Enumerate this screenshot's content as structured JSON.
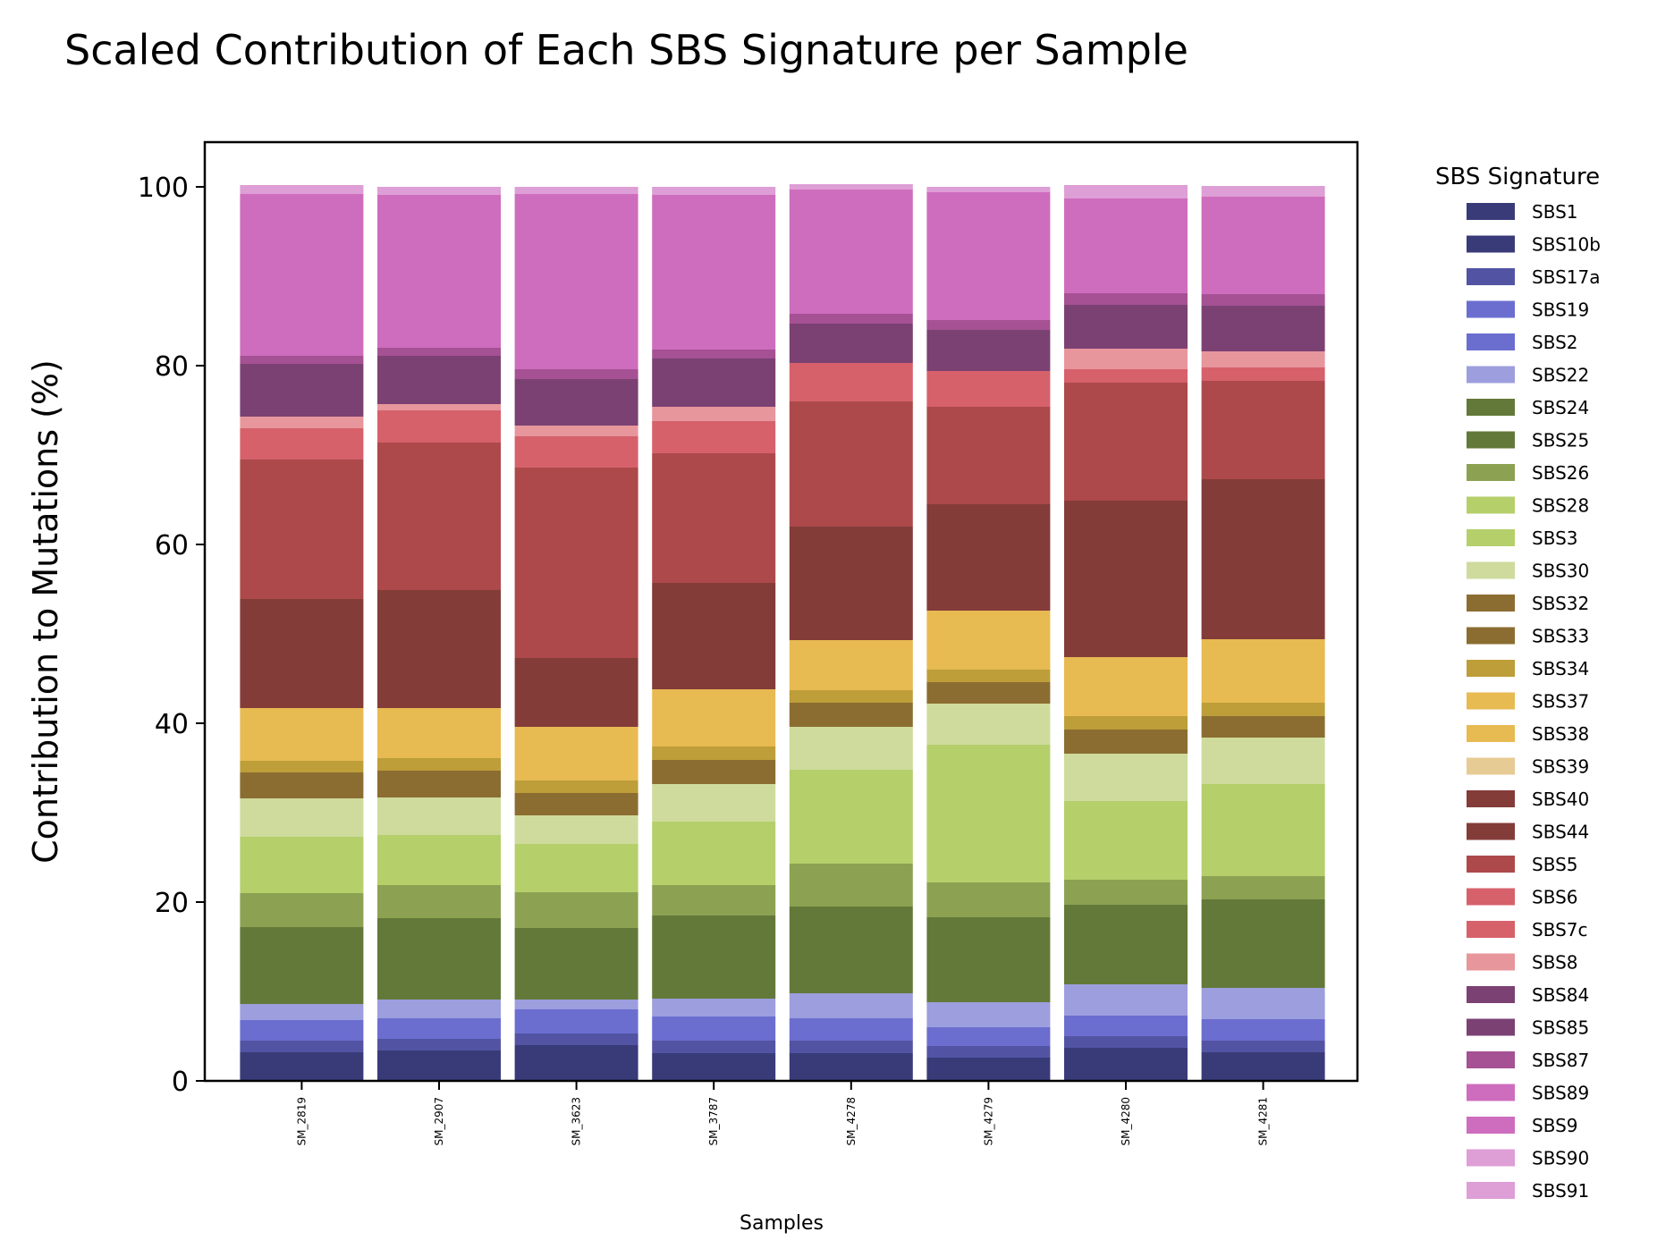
{
  "chart_data": {
    "type": "bar",
    "stacked": true,
    "title": "Scaled Contribution of Each SBS Signature per Sample",
    "xlabel": "Samples",
    "ylabel": "Contribution to Mutations (%)",
    "ylim": [
      0,
      105
    ],
    "yticks": [
      "0",
      "20",
      "40",
      "60",
      "80",
      "100"
    ],
    "grid": false,
    "legend_title": "SBS Signature",
    "legend_position": "outside-right",
    "categories": [
      "SM_2819",
      "SM_2907",
      "SM_3623",
      "SM_3787",
      "SM_4278",
      "SM_4279",
      "SM_4280",
      "SM_4281"
    ],
    "series": [
      {
        "name": "SBS1",
        "color": "#393b79",
        "values": [
          3.2,
          3.4,
          4.0,
          3.1,
          3.1,
          2.6,
          3.7,
          3.2
        ]
      },
      {
        "name": "SBS10b",
        "color": "#393b79",
        "values": [
          0,
          0,
          0,
          0,
          0,
          0,
          0,
          0
        ]
      },
      {
        "name": "SBS17a",
        "color": "#5254a3",
        "values": [
          1.3,
          1.3,
          1.3,
          1.4,
          1.4,
          1.3,
          1.3,
          1.3
        ]
      },
      {
        "name": "SBS19",
        "color": "#6b6ecf",
        "values": [
          0,
          0,
          0,
          0,
          0,
          0,
          0,
          0
        ]
      },
      {
        "name": "SBS2",
        "color": "#6b6ecf",
        "values": [
          2.3,
          2.3,
          2.7,
          2.7,
          2.5,
          2.1,
          2.3,
          2.4
        ]
      },
      {
        "name": "SBS22",
        "color": "#9c9ede",
        "values": [
          1.8,
          2.1,
          1.1,
          2.0,
          2.8,
          2.8,
          3.5,
          3.5
        ]
      },
      {
        "name": "SBS24",
        "color": "#637939",
        "values": [
          0,
          0,
          0,
          0,
          0,
          0,
          0,
          0
        ]
      },
      {
        "name": "SBS25",
        "color": "#637939",
        "values": [
          8.6,
          9.1,
          8.0,
          9.3,
          9.7,
          9.5,
          8.9,
          9.9
        ]
      },
      {
        "name": "SBS26",
        "color": "#8ca252",
        "values": [
          3.8,
          3.7,
          4.0,
          3.4,
          4.8,
          3.9,
          2.8,
          2.6
        ]
      },
      {
        "name": "SBS28",
        "color": "#b5cf6b",
        "values": [
          0,
          0,
          0,
          0,
          0,
          0,
          0,
          0
        ]
      },
      {
        "name": "SBS3",
        "color": "#b5cf6b",
        "values": [
          6.3,
          5.6,
          5.4,
          7.1,
          10.5,
          15.4,
          8.8,
          10.3
        ]
      },
      {
        "name": "SBS30",
        "color": "#cedb9c",
        "values": [
          4.3,
          4.2,
          3.2,
          4.2,
          4.8,
          4.6,
          5.3,
          5.2
        ]
      },
      {
        "name": "SBS32",
        "color": "#8c6d31",
        "values": [
          0,
          0,
          0,
          0,
          0,
          0,
          0,
          0
        ]
      },
      {
        "name": "SBS33",
        "color": "#8c6d31",
        "values": [
          2.9,
          3.0,
          2.5,
          2.7,
          2.7,
          2.4,
          2.7,
          2.4
        ]
      },
      {
        "name": "SBS34",
        "color": "#bd9e39",
        "values": [
          1.3,
          1.4,
          1.4,
          1.5,
          1.4,
          1.4,
          1.5,
          1.5
        ]
      },
      {
        "name": "SBS37",
        "color": "#e7ba52",
        "values": [
          0,
          0,
          0,
          0,
          0,
          0,
          0,
          0
        ]
      },
      {
        "name": "SBS38",
        "color": "#e7ba52",
        "values": [
          5.9,
          5.6,
          6.0,
          6.4,
          5.6,
          6.6,
          6.6,
          7.1
        ]
      },
      {
        "name": "SBS39",
        "color": "#e7cb94",
        "values": [
          0,
          0,
          0,
          0,
          0,
          0,
          0,
          0
        ]
      },
      {
        "name": "SBS40",
        "color": "#843c39",
        "values": [
          0,
          0,
          0,
          0,
          0,
          0,
          0,
          0
        ]
      },
      {
        "name": "SBS44",
        "color": "#843c39",
        "values": [
          12.2,
          13.2,
          7.7,
          11.9,
          12.7,
          11.9,
          17.5,
          17.9
        ]
      },
      {
        "name": "SBS5",
        "color": "#ad494a",
        "values": [
          15.6,
          16.5,
          21.3,
          14.5,
          14.0,
          10.9,
          13.2,
          11.0
        ]
      },
      {
        "name": "SBS6",
        "color": "#d6616b",
        "values": [
          0,
          0,
          0,
          0,
          0,
          0,
          0,
          0
        ]
      },
      {
        "name": "SBS7c",
        "color": "#d6616b",
        "values": [
          3.5,
          3.6,
          3.5,
          3.6,
          4.3,
          4.0,
          1.5,
          1.5
        ]
      },
      {
        "name": "SBS8",
        "color": "#e7969c",
        "values": [
          1.3,
          0.7,
          1.2,
          1.6,
          0,
          0,
          2.3,
          1.8
        ]
      },
      {
        "name": "SBS84",
        "color": "#7b4173",
        "values": [
          0,
          0,
          0,
          0,
          0,
          0,
          0,
          0
        ]
      },
      {
        "name": "SBS85",
        "color": "#7b4173",
        "values": [
          5.9,
          5.4,
          5.2,
          5.4,
          4.4,
          4.6,
          4.9,
          5.1
        ]
      },
      {
        "name": "SBS87",
        "color": "#a55194",
        "values": [
          0.9,
          0.9,
          1.1,
          1.0,
          1.1,
          1.1,
          1.3,
          1.3
        ]
      },
      {
        "name": "SBS89",
        "color": "#ce6dbd",
        "values": [
          0,
          0,
          0,
          0,
          0,
          0,
          0,
          0
        ]
      },
      {
        "name": "SBS9",
        "color": "#ce6dbd",
        "values": [
          18.1,
          17.1,
          19.6,
          17.3,
          13.9,
          14.3,
          10.6,
          10.9
        ]
      },
      {
        "name": "SBS90",
        "color": "#de9ed6",
        "values": [
          0,
          0,
          0,
          0,
          0,
          0,
          0,
          0
        ]
      },
      {
        "name": "SBS91",
        "color": "#de9ed6",
        "values": [
          1.0,
          0.9,
          0.8,
          0.9,
          0.6,
          0.6,
          1.5,
          1.2
        ]
      }
    ]
  }
}
